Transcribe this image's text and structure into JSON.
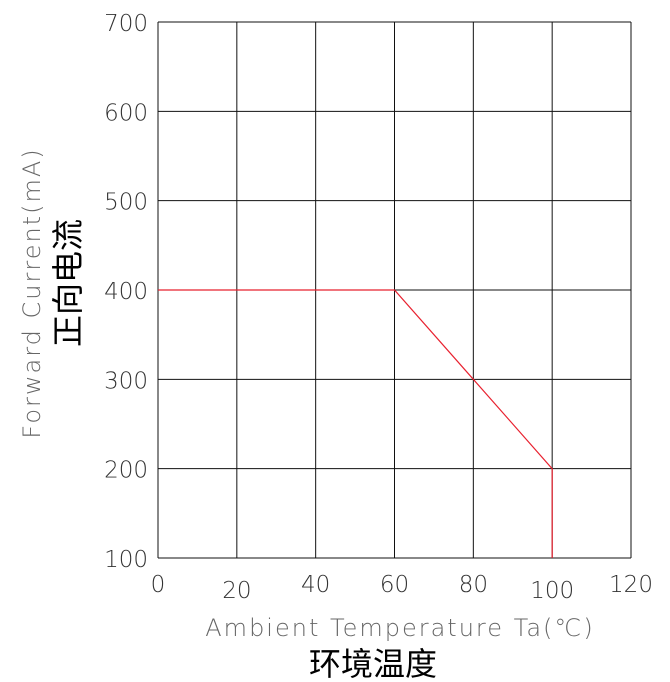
{
  "chart_data": {
    "type": "line",
    "title": "",
    "xlabel": "Ambient Temperature Ta(℃)",
    "xlabel_cn": "环境温度",
    "ylabel": "Forward Current(mA)",
    "ylabel_cn": "正向电流",
    "xlim": [
      0,
      120
    ],
    "ylim": [
      100,
      700
    ],
    "x_ticks": [
      "0",
      "20",
      "40",
      "60",
      "80",
      "100",
      "120"
    ],
    "y_ticks": [
      "100",
      "200",
      "300",
      "400",
      "500",
      "600",
      "700"
    ],
    "grid": true,
    "series": [
      {
        "color": "#e8212f",
        "points": [
          [
            0,
            400
          ],
          [
            60,
            400
          ],
          [
            80,
            300
          ],
          [
            100,
            200
          ],
          [
            100,
            100
          ]
        ]
      }
    ]
  }
}
